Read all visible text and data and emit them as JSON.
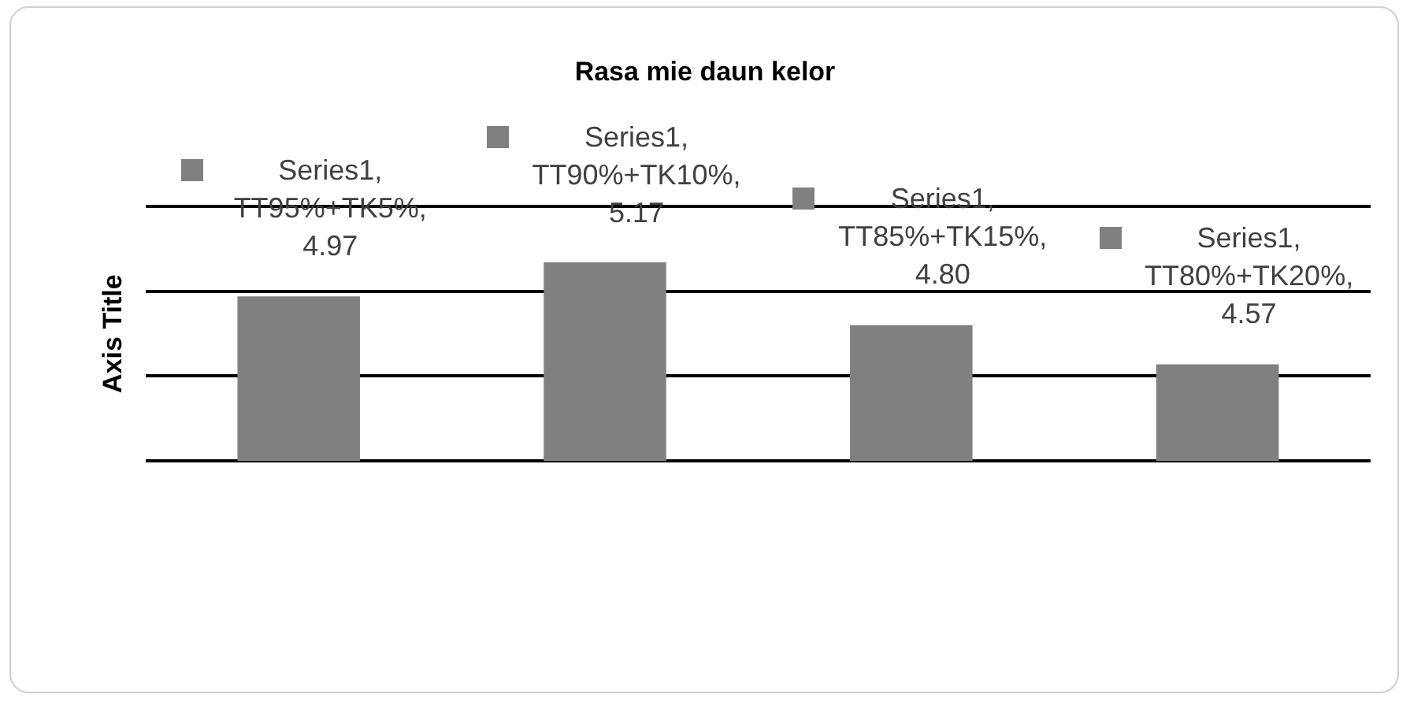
{
  "chart_data": {
    "type": "bar",
    "title": "Rasa mie daun kelor",
    "ylabel": "Axis Title",
    "categories": [
      null,
      null,
      null,
      null
    ],
    "series": [
      {
        "color": "#808080",
        "values": [
          4.97,
          5.17,
          4.8,
          4.57
        ],
        "value_labels": [
          "Series1, TT95%+TK5%, 4.97",
          "Series1, TT90%+TK10%, 5.17",
          "Series1, TT85%+TK15%, 4.80",
          "Series1, TT80%+TK20%, 4.57"
        ]
      }
    ],
    "ylim": [
      4,
      5.5
    ],
    "yticks": [
      {
        "value": 4,
        "label": null
      },
      {
        "value": 4.5,
        "label": null
      },
      {
        "value": 5,
        "label": null
      },
      {
        "value": 5.5,
        "label": null
      }
    ],
    "grid": "y",
    "legend": false
  }
}
